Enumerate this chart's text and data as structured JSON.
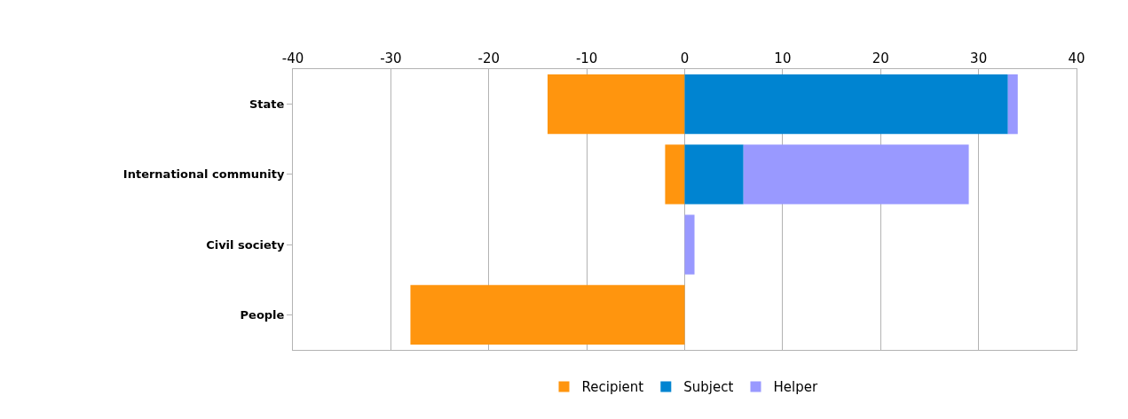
{
  "chart_data": {
    "type": "bar",
    "orientation": "horizontal",
    "stacked": true,
    "categories": [
      "State",
      "International community",
      "Civil society",
      "People"
    ],
    "series": [
      {
        "name": "Recipient",
        "color": "#ff950e",
        "values": [
          -14,
          -2,
          null,
          -28
        ]
      },
      {
        "name": "Subject",
        "color": "#0084d1",
        "values": [
          33,
          6,
          null,
          null
        ]
      },
      {
        "name": "Helper",
        "color": "#9999ff",
        "values": [
          1,
          23,
          1,
          null
        ]
      }
    ],
    "xlim": [
      -40,
      40
    ],
    "xticks": [
      -40,
      -30,
      -20,
      -10,
      0,
      10,
      20,
      30,
      40
    ],
    "grid": "x",
    "legend": "bottom"
  }
}
